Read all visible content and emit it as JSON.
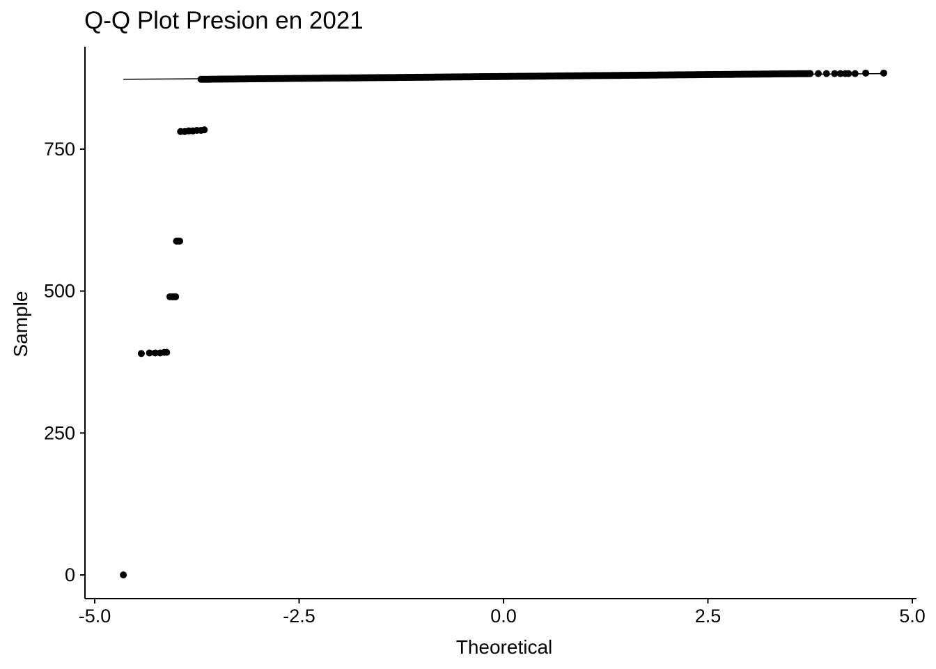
{
  "chart_data": {
    "type": "scatter",
    "title": "Q-Q Plot Presion en 2021",
    "xlabel": "Theoretical",
    "ylabel": "Sample",
    "xlim": [
      -5.0,
      5.0
    ],
    "ylim": [
      -40,
      915
    ],
    "x_ticks": [
      {
        "value": -5.0,
        "label": "-5.0"
      },
      {
        "value": -2.5,
        "label": "-2.5"
      },
      {
        "value": 0.0,
        "label": "0.0"
      },
      {
        "value": 2.5,
        "label": "2.5"
      },
      {
        "value": 5.0,
        "label": "5.0"
      }
    ],
    "y_ticks": [
      {
        "value": 0,
        "label": "0"
      },
      {
        "value": 250,
        "label": "250"
      },
      {
        "value": 500,
        "label": "500"
      },
      {
        "value": 750,
        "label": "750"
      }
    ],
    "grid": false,
    "legend": "none",
    "marker_color": "#000000",
    "reference_line": {
      "x": [
        -4.65,
        4.65
      ],
      "y": [
        873,
        883
      ]
    },
    "points": [
      {
        "x": -4.65,
        "y": 0
      },
      {
        "x": -4.43,
        "y": 390
      },
      {
        "x": -4.33,
        "y": 391
      },
      {
        "x": -4.26,
        "y": 391
      },
      {
        "x": -4.2,
        "y": 391
      },
      {
        "x": -4.15,
        "y": 392
      },
      {
        "x": -4.12,
        "y": 392
      },
      {
        "x": -4.08,
        "y": 490
      },
      {
        "x": -4.05,
        "y": 490
      },
      {
        "x": -4.03,
        "y": 490
      },
      {
        "x": -4.01,
        "y": 490
      },
      {
        "x": -4.0,
        "y": 588
      },
      {
        "x": -3.98,
        "y": 588
      },
      {
        "x": -3.96,
        "y": 588
      },
      {
        "x": -3.95,
        "y": 781
      },
      {
        "x": -3.9,
        "y": 781
      },
      {
        "x": -3.85,
        "y": 782
      },
      {
        "x": -3.8,
        "y": 782
      },
      {
        "x": -3.75,
        "y": 783
      },
      {
        "x": -3.7,
        "y": 783
      },
      {
        "x": -3.66,
        "y": 784
      },
      {
        "x": 3.75,
        "y": 883
      },
      {
        "x": 3.85,
        "y": 883
      },
      {
        "x": 3.95,
        "y": 883
      },
      {
        "x": 4.05,
        "y": 883
      },
      {
        "x": 4.12,
        "y": 883
      },
      {
        "x": 4.18,
        "y": 883
      },
      {
        "x": 4.22,
        "y": 883
      },
      {
        "x": 4.3,
        "y": 883
      },
      {
        "x": 4.43,
        "y": 884
      },
      {
        "x": 4.65,
        "y": 884
      }
    ],
    "dense_band": {
      "x": [
        -3.7,
        3.75
      ],
      "y": [
        873,
        883
      ]
    }
  }
}
